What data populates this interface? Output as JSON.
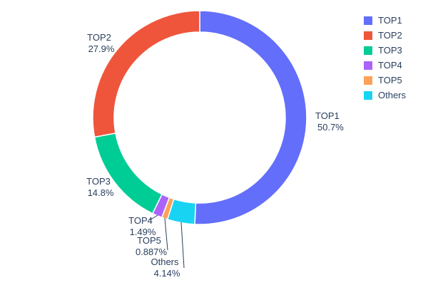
{
  "chart_data": {
    "type": "pie",
    "hole": 0.8,
    "labels": [
      "TOP1",
      "TOP2",
      "TOP3",
      "TOP4",
      "TOP5",
      "Others"
    ],
    "values": [
      50.7,
      27.9,
      14.8,
      1.49,
      0.887,
      4.14
    ],
    "percent_labels": [
      "50.7%",
      "27.9%",
      "14.8%",
      "1.49%",
      "0.887%",
      "4.14%"
    ],
    "colors": [
      "#636EFA",
      "#EF553B",
      "#00CC96",
      "#AB63FA",
      "#FFA15A",
      "#19D3F3"
    ],
    "legend": {
      "position": "top-right",
      "entries": [
        "TOP1",
        "TOP2",
        "TOP3",
        "TOP4",
        "TOP5",
        "Others"
      ]
    },
    "title": "",
    "text_color": "#2a3f5f",
    "background": "#ffffff",
    "grid": false
  }
}
